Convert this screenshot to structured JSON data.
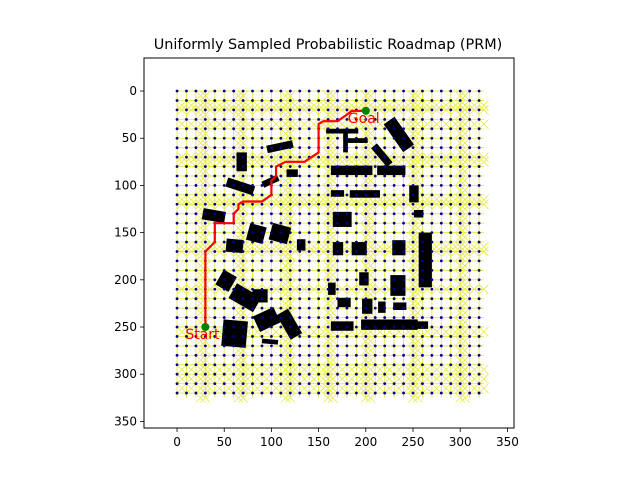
{
  "chart_data": {
    "type": "scatter",
    "title": "Uniformly Sampled Probabilistic Roadmap (PRM)",
    "xlabel": "",
    "ylabel": "",
    "xlim": [
      -35,
      357
    ],
    "ylim": [
      357,
      -35
    ],
    "y_inverted": true,
    "xticks": [
      0,
      50,
      100,
      150,
      200,
      250,
      300,
      350
    ],
    "yticks": [
      0,
      50,
      100,
      150,
      200,
      250,
      300,
      350
    ],
    "grid": false,
    "roadmap": {
      "node_spacing": 10,
      "node_range": [
        0,
        325
      ],
      "node_color": "#00008b",
      "edge_color": "#e8e84a",
      "dense_rows": [
        10,
        15,
        30,
        65,
        70,
        110,
        115,
        160,
        165,
        205,
        250,
        290,
        300,
        310
      ],
      "dense_cols": [
        20,
        25,
        60,
        65,
        110,
        115,
        155,
        160,
        195,
        200,
        245,
        250,
        295,
        300
      ]
    },
    "obstacles": [
      {
        "x": 95,
        "y": 55,
        "w": 28,
        "h": 8,
        "angle": -12
      },
      {
        "x": 63,
        "y": 65,
        "w": 11,
        "h": 20,
        "angle": 0
      },
      {
        "x": 52,
        "y": 96,
        "w": 30,
        "h": 10,
        "angle": 18
      },
      {
        "x": 90,
        "y": 92,
        "w": 18,
        "h": 7,
        "angle": -25
      },
      {
        "x": 116,
        "y": 83,
        "w": 12,
        "h": 8,
        "angle": 0
      },
      {
        "x": 27,
        "y": 126,
        "w": 24,
        "h": 12,
        "angle": 10
      },
      {
        "x": 75,
        "y": 142,
        "w": 18,
        "h": 18,
        "angle": 15
      },
      {
        "x": 52,
        "y": 157,
        "w": 18,
        "h": 14,
        "angle": 5
      },
      {
        "x": 99,
        "y": 142,
        "w": 20,
        "h": 18,
        "angle": 15
      },
      {
        "x": 127,
        "y": 157,
        "w": 9,
        "h": 12,
        "angle": 0
      },
      {
        "x": 44,
        "y": 192,
        "w": 16,
        "h": 18,
        "angle": 30
      },
      {
        "x": 57,
        "y": 210,
        "w": 30,
        "h": 18,
        "angle": 30
      },
      {
        "x": 80,
        "y": 210,
        "w": 16,
        "h": 14,
        "angle": 0
      },
      {
        "x": 83,
        "y": 233,
        "w": 24,
        "h": 18,
        "angle": -25
      },
      {
        "x": 112,
        "y": 232,
        "w": 14,
        "h": 30,
        "angle": -30
      },
      {
        "x": 48,
        "y": 243,
        "w": 26,
        "h": 28,
        "angle": 5
      },
      {
        "x": 90,
        "y": 263,
        "w": 17,
        "h": 5,
        "angle": 5
      },
      {
        "x": 158,
        "y": 40,
        "w": 34,
        "h": 5,
        "angle": 0
      },
      {
        "x": 176,
        "y": 40,
        "w": 5,
        "h": 25,
        "angle": 0
      },
      {
        "x": 180,
        "y": 50,
        "w": 22,
        "h": 5,
        "angle": 0
      },
      {
        "x": 228,
        "y": 28,
        "w": 14,
        "h": 36,
        "angle": -35
      },
      {
        "x": 213,
        "y": 55,
        "w": 8,
        "h": 26,
        "angle": -40
      },
      {
        "x": 163,
        "y": 79,
        "w": 44,
        "h": 10,
        "angle": 0
      },
      {
        "x": 212,
        "y": 79,
        "w": 30,
        "h": 10,
        "angle": 0
      },
      {
        "x": 163,
        "y": 105,
        "w": 14,
        "h": 7,
        "angle": 0
      },
      {
        "x": 183,
        "y": 105,
        "w": 32,
        "h": 8,
        "angle": 0
      },
      {
        "x": 246,
        "y": 100,
        "w": 10,
        "h": 18,
        "angle": 0
      },
      {
        "x": 251,
        "y": 126,
        "w": 10,
        "h": 8,
        "angle": 0
      },
      {
        "x": 165,
        "y": 128,
        "w": 20,
        "h": 16,
        "angle": 0
      },
      {
        "x": 165,
        "y": 160,
        "w": 11,
        "h": 14,
        "angle": 0
      },
      {
        "x": 185,
        "y": 160,
        "w": 16,
        "h": 14,
        "angle": 0
      },
      {
        "x": 228,
        "y": 158,
        "w": 14,
        "h": 16,
        "angle": 0
      },
      {
        "x": 256,
        "y": 150,
        "w": 14,
        "h": 58,
        "angle": 0
      },
      {
        "x": 160,
        "y": 203,
        "w": 8,
        "h": 13,
        "angle": 0
      },
      {
        "x": 193,
        "y": 192,
        "w": 10,
        "h": 14,
        "angle": 0
      },
      {
        "x": 226,
        "y": 195,
        "w": 16,
        "h": 22,
        "angle": 0
      },
      {
        "x": 170,
        "y": 219,
        "w": 14,
        "h": 10,
        "angle": 0
      },
      {
        "x": 196,
        "y": 220,
        "w": 11,
        "h": 16,
        "angle": 0
      },
      {
        "x": 213,
        "y": 223,
        "w": 8,
        "h": 12,
        "angle": 0
      },
      {
        "x": 229,
        "y": 224,
        "w": 14,
        "h": 8,
        "angle": 0
      },
      {
        "x": 163,
        "y": 244,
        "w": 24,
        "h": 10,
        "angle": 0
      },
      {
        "x": 195,
        "y": 242,
        "w": 60,
        "h": 11,
        "angle": 0
      },
      {
        "x": 254,
        "y": 244,
        "w": 12,
        "h": 8,
        "angle": 0
      }
    ],
    "path": {
      "color": "#ff0000",
      "points": [
        [
          30,
          250
        ],
        [
          30,
          170
        ],
        [
          35,
          165
        ],
        [
          40,
          160
        ],
        [
          40,
          140
        ],
        [
          50,
          140
        ],
        [
          60,
          140
        ],
        [
          60,
          130
        ],
        [
          65,
          125
        ],
        [
          65,
          120
        ],
        [
          70,
          117
        ],
        [
          90,
          117
        ],
        [
          100,
          110
        ],
        [
          100,
          95
        ],
        [
          105,
          90
        ],
        [
          105,
          80
        ],
        [
          115,
          75
        ],
        [
          135,
          75
        ],
        [
          150,
          65
        ],
        [
          150,
          35
        ],
        [
          155,
          32
        ],
        [
          170,
          32
        ],
        [
          180,
          25
        ],
        [
          185,
          21
        ],
        [
          200,
          21
        ]
      ]
    },
    "start": {
      "x": 30,
      "y": 250,
      "label": "Start",
      "color": "#008000",
      "label_color": "#ff0000"
    },
    "goal": {
      "x": 200,
      "y": 21,
      "label": "Goal",
      "color": "#008000",
      "label_color": "#ff0000"
    }
  }
}
